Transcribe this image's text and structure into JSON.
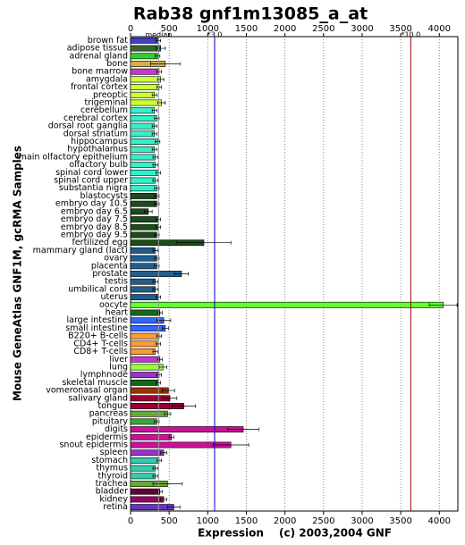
{
  "chart_data": {
    "type": "bar",
    "orientation": "horizontal",
    "title": "Rab38 gnf1m13085_a_at",
    "y_label": "Mouse GeneAtlas GNF1M, gcRMA Samples",
    "x_label": "Expression",
    "credit": "(c) 2003,2004 GNF",
    "categories": [
      "brown fat",
      "adipose tissue",
      "adrenal gland",
      "bone",
      "bone marrow",
      "amygdala",
      "frontal cortex",
      "preoptic",
      "trigeminal",
      "cerebellum",
      "cerebral cortex",
      "dorsal root ganglia",
      "dorsal striatum",
      "hippocampus",
      "hypothalamus",
      "main olfactory epithelium",
      "olfactory bulb",
      "spinal cord lower",
      "spinal cord upper",
      "substantia nigra",
      "blastocysts",
      "embryo day 10.5",
      "embryo day 6.5",
      "embryo day 7.5",
      "embryo day 8.5",
      "embryo day 9.5",
      "fertilized egg",
      "mammary gland (lact)",
      "ovary",
      "placenta",
      "prostate",
      "testis",
      "umbilical cord",
      "uterus",
      "oocyte",
      "heart",
      "large intestine",
      "small intestine",
      "B220+ B-cells",
      "CD4+ T-cells",
      "CD8+ T-cells",
      "liver",
      "lung",
      "lymphnode",
      "skeletal muscle",
      "vomeronasal organ",
      "salivary gland",
      "tongue",
      "pancreas",
      "pituitary",
      "digits",
      "epidermis",
      "snout epidermis",
      "spleen",
      "stomach",
      "thymus",
      "thyroid",
      "trachea",
      "bladder",
      "kidney",
      "retina"
    ],
    "values": [
      360,
      390,
      350,
      450,
      370,
      390,
      370,
      310,
      400,
      310,
      340,
      310,
      310,
      350,
      310,
      320,
      320,
      360,
      320,
      340,
      340,
      340,
      230,
      360,
      360,
      340,
      950,
      320,
      340,
      340,
      660,
      320,
      320,
      360,
      4050,
      380,
      430,
      450,
      370,
      360,
      320,
      380,
      420,
      370,
      360,
      490,
      510,
      690,
      480,
      340,
      1460,
      530,
      1300,
      430,
      370,
      320,
      320,
      480,
      380,
      430,
      560
    ],
    "errors": [
      30,
      60,
      30,
      190,
      30,
      40,
      30,
      30,
      50,
      30,
      30,
      30,
      30,
      30,
      30,
      30,
      30,
      30,
      30,
      30,
      30,
      30,
      50,
      30,
      30,
      30,
      350,
      30,
      30,
      30,
      90,
      30,
      30,
      30,
      180,
      30,
      90,
      40,
      30,
      30,
      30,
      30,
      50,
      30,
      30,
      80,
      90,
      150,
      40,
      30,
      200,
      30,
      230,
      40,
      30,
      30,
      30,
      190,
      30,
      40,
      80
    ],
    "colors": [
      "#4040c0",
      "#336633",
      "#33cc33",
      "#d4b040",
      "#cc33cc",
      "#ccff33",
      "#ccff33",
      "#ccff33",
      "#ccff33",
      "#33f0c8",
      "#33f0c8",
      "#33f0c8",
      "#33f0c8",
      "#33f0c8",
      "#33f0c8",
      "#33f0c8",
      "#33f0c8",
      "#33f0c8",
      "#33f0c8",
      "#33f0c8",
      "#1a4d1a",
      "#1a4d1a",
      "#1a4d1a",
      "#1a4d1a",
      "#1a4d1a",
      "#1a4d1a",
      "#1a4d1a",
      "#1f5f8f",
      "#1f5f8f",
      "#1f5f8f",
      "#1f5f8f",
      "#1f5f8f",
      "#1f5f8f",
      "#1f5f8f",
      "#66ff33",
      "#1a661a",
      "#3366ff",
      "#3366ff",
      "#ff9933",
      "#ff9933",
      "#ff9933",
      "#cc33cc",
      "#99ff33",
      "#9933cc",
      "#1a661a",
      "#993300",
      "#990033",
      "#990033",
      "#66aa33",
      "#33aa33",
      "#cc1199",
      "#cc1199",
      "#cc1199",
      "#9933cc",
      "#33ccaa",
      "#33ccaa",
      "#33ccaa",
      "#66aa33",
      "#660033",
      "#990066",
      "#6633cc"
    ],
    "xlim": [
      0,
      4240
    ],
    "xticks": [
      0,
      500,
      1000,
      1500,
      2000,
      2500,
      3000,
      3500,
      4000
    ],
    "grid": true,
    "reference_lines": [
      {
        "label": "median",
        "value": 363,
        "color": "#999999"
      },
      {
        "label": "*3.0",
        "value": 1089,
        "color": "#0000cc"
      },
      {
        "label": "*10.0",
        "value": 3630,
        "color": "#990000"
      }
    ]
  }
}
